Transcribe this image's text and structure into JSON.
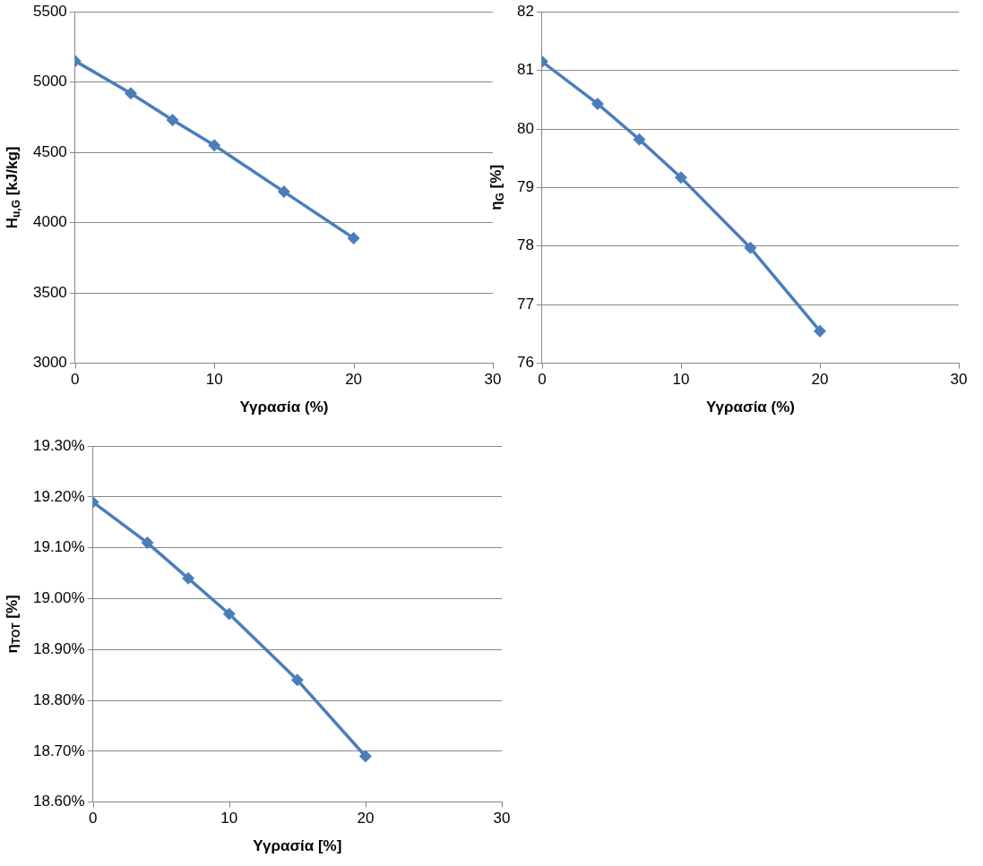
{
  "chart_data": [
    {
      "type": "line",
      "xlabel": "Υγρασία (%)",
      "ylabel": "H$_{u,G}$ [kJ/kg]",
      "x": [
        0,
        4,
        7,
        10,
        15,
        20
      ],
      "series": [
        {
          "color": "#4a7ebb",
          "values": [
            5150,
            4920,
            4730,
            4550,
            4220,
            3890
          ]
        }
      ],
      "xlim": [
        0,
        30
      ],
      "xticks": [
        0,
        10,
        20,
        30
      ],
      "ylim": [
        3000,
        5500
      ],
      "yticks": [
        3000,
        3500,
        4000,
        4500,
        5000,
        5500
      ],
      "grid": "y",
      "legend": false,
      "marker": "diamond",
      "line_style": "solid"
    },
    {
      "type": "line",
      "xlabel": "Υγρασία (%)",
      "ylabel": "η$_{G}$ [%]",
      "x": [
        0,
        4,
        7,
        10,
        15,
        20
      ],
      "series": [
        {
          "color": "#4a7ebb",
          "values": [
            81.15,
            80.43,
            79.82,
            79.17,
            77.97,
            76.55
          ]
        }
      ],
      "xlim": [
        0,
        30
      ],
      "xticks": [
        0,
        10,
        20,
        30
      ],
      "ylim": [
        76,
        82
      ],
      "yticks": [
        76,
        77,
        78,
        79,
        80,
        81,
        82
      ],
      "grid": "y",
      "legend": false,
      "marker": "diamond",
      "line_style": "solid"
    },
    {
      "type": "line",
      "xlabel": "Υγρασία [%]",
      "ylabel": "η$_{TOT}$ [%]",
      "x": [
        0,
        4,
        7,
        10,
        15,
        20
      ],
      "series": [
        {
          "color": "#4a7ebb",
          "values": [
            19.19,
            19.11,
            19.04,
            18.97,
            18.84,
            18.69
          ]
        }
      ],
      "xlim": [
        0,
        30
      ],
      "xticks": [
        0,
        10,
        20,
        30
      ],
      "ylim": [
        18.6,
        19.3
      ],
      "yticks": [
        {
          "value": 18.6,
          "label": "18.60%"
        },
        {
          "value": 18.7,
          "label": "18.70%"
        },
        {
          "value": 18.8,
          "label": "18.80%"
        },
        {
          "value": 18.9,
          "label": "18.90%"
        },
        {
          "value": 19.0,
          "label": "19.00%"
        },
        {
          "value": 19.1,
          "label": "19.10%"
        },
        {
          "value": 19.2,
          "label": "19.20%"
        },
        {
          "value": 19.3,
          "label": "19.30%"
        }
      ],
      "grid": "y",
      "legend": false,
      "marker": "diamond",
      "line_style": "solid"
    }
  ]
}
